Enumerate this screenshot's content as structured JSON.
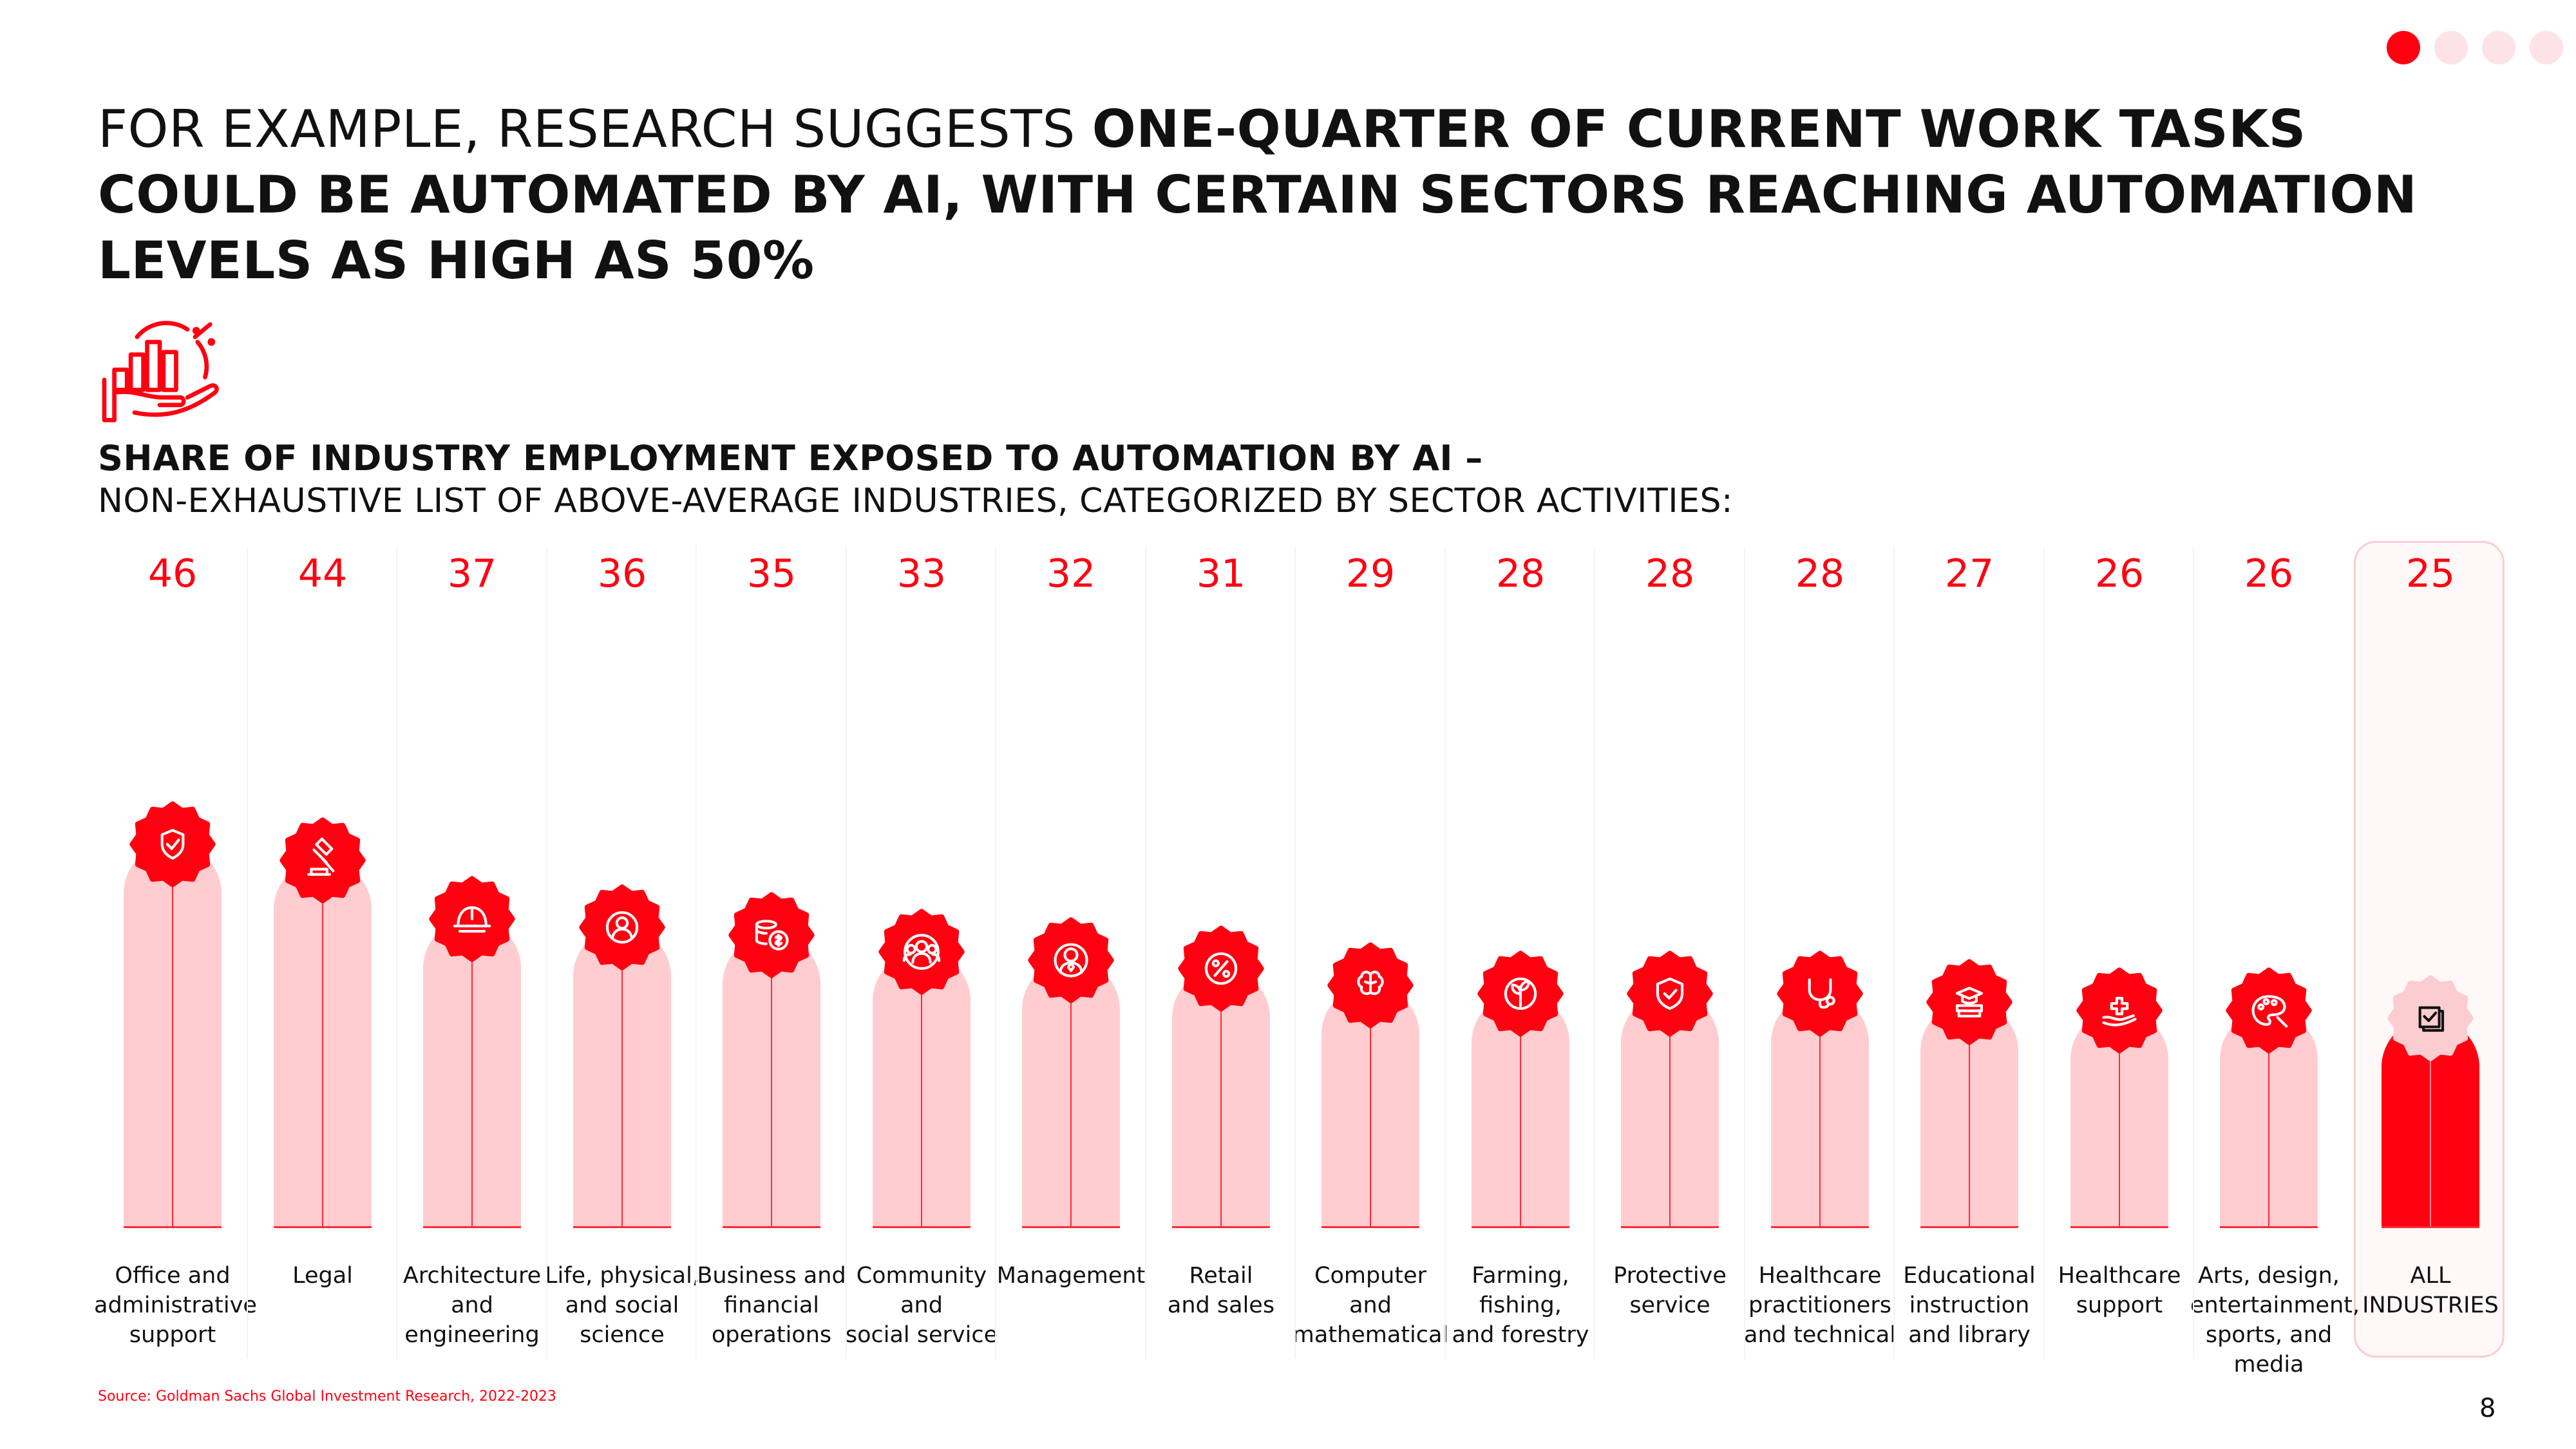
{
  "headline": {
    "lead": "FOR EXAMPLE, RESEARCH SUGGESTS ",
    "emphasis": "ONE-QUARTER OF CURRENT WORK TASKS COULD BE AUTOMATED BY AI, WITH CERTAIN SECTORS REACHING AUTOMATION LEVELS AS HIGH AS 50%"
  },
  "subtitle": {
    "line1": "SHARE OF INDUSTRY EMPLOYMENT EXPOSED TO AUTOMATION BY AI –",
    "line2": "NON-EXHAUSTIVE LIST OF ABOVE-AVERAGE INDUSTRIES, CATEGORIZED BY SECTOR ACTIVITIES:"
  },
  "logo_icon": "hand-holding-rising-bar-chart-percent-icon",
  "source": "Source: Goldman Sachs Global Investment Research, 2022-2023",
  "page_number": "8",
  "pagination": {
    "count": 4,
    "active": 1
  },
  "colors": {
    "accent": "#ff0011",
    "pillar": "#ffcdd0",
    "all_pillar": "#ff0011",
    "highlight_border": "#fbcdd0",
    "dot_inactive": "#fde3e5"
  },
  "chart_data": {
    "type": "bar",
    "title": "SHARE OF INDUSTRY EMPLOYMENT EXPOSED TO AUTOMATION BY AI –",
    "subtitle": "NON-EXHAUSTIVE LIST OF ABOVE-AVERAGE INDUSTRIES, CATEGORIZED BY SECTOR ACTIVITIES:",
    "unit": "%",
    "categories": [
      "Office and\nadministrative\nsupport",
      "Legal",
      "Architecture\nand\nengineering",
      "Life, physical,\nand social\nscience",
      "Business and\nfinancial\noperations",
      "Community\nand\nsocial service",
      "Management",
      "Retail\nand sales",
      "Computer and\nmathematical",
      "Farming,\nfishing,\nand forestry",
      "Protective\nservice",
      "Healthcare\npractitioners\nand technical",
      "Educational\ninstruction\nand library",
      "Healthcare\nsupport",
      "Arts, design,\nentertainment,\nsports, and\nmedia",
      "ALL\nINDUSTRIES"
    ],
    "values": [
      46,
      44,
      37,
      36,
      35,
      33,
      32,
      31,
      29,
      28,
      28,
      28,
      27,
      26,
      26,
      25
    ],
    "icons": [
      "gear-shield-check-icon",
      "gavel-icon",
      "hard-hat-icon",
      "gear-person-icon",
      "coins-dollar-icon",
      "people-group-icon",
      "gear-manager-icon",
      "percent-tag-icon",
      "circuit-brain-icon",
      "leaf-plant-icon",
      "shield-check-icon",
      "stethoscope-icon",
      "books-graduation-cap-icon",
      "hand-medical-cross-icon",
      "palette-brush-icon",
      "checklist-icon"
    ],
    "highlight_index": 15,
    "ylim": [
      0,
      50
    ],
    "grid": false,
    "legend": "none"
  }
}
